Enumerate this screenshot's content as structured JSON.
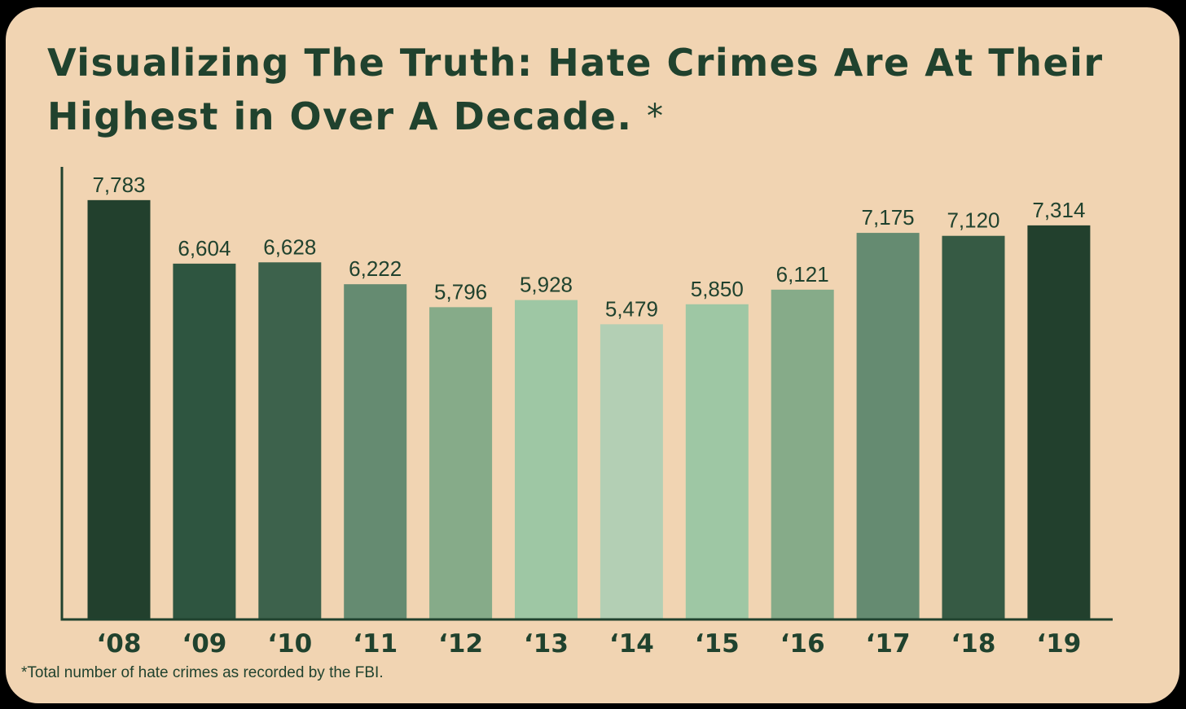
{
  "chart_data": {
    "type": "bar",
    "title": "Visualizing The Truth: Hate Crimes Are At Their Highest in Over A Decade.",
    "title_marker": "*",
    "categories": [
      "‘08",
      "‘09",
      "‘10",
      "‘11",
      "‘12",
      "‘13",
      "‘14",
      "‘15",
      "‘16",
      "‘17",
      "‘18",
      "‘19"
    ],
    "values": [
      7783,
      6604,
      6628,
      6222,
      5796,
      5928,
      5479,
      5850,
      6121,
      7175,
      7120,
      7314
    ],
    "value_labels": [
      "7,783",
      "6,604",
      "6,628",
      "6,222",
      "5,796",
      "5,928",
      "5,479",
      "5,850",
      "6,121",
      "7,175",
      "7,120",
      "7,314"
    ],
    "bar_colors": [
      "#22402d",
      "#2e5540",
      "#3d624c",
      "#658b71",
      "#86ab89",
      "#9ec7a4",
      "#b3cfb4",
      "#9ec7a4",
      "#86ab89",
      "#658b71",
      "#365a44",
      "#22402d"
    ],
    "xlabel": "",
    "ylabel": "",
    "ylim": [
      0,
      8400
    ],
    "grid": false,
    "legend": "none",
    "footnote": "*Total number of hate crimes as recorded by the FBI."
  },
  "colors": {
    "background": "#f1d4b2",
    "text": "#20422e",
    "axis": "#20422e"
  }
}
